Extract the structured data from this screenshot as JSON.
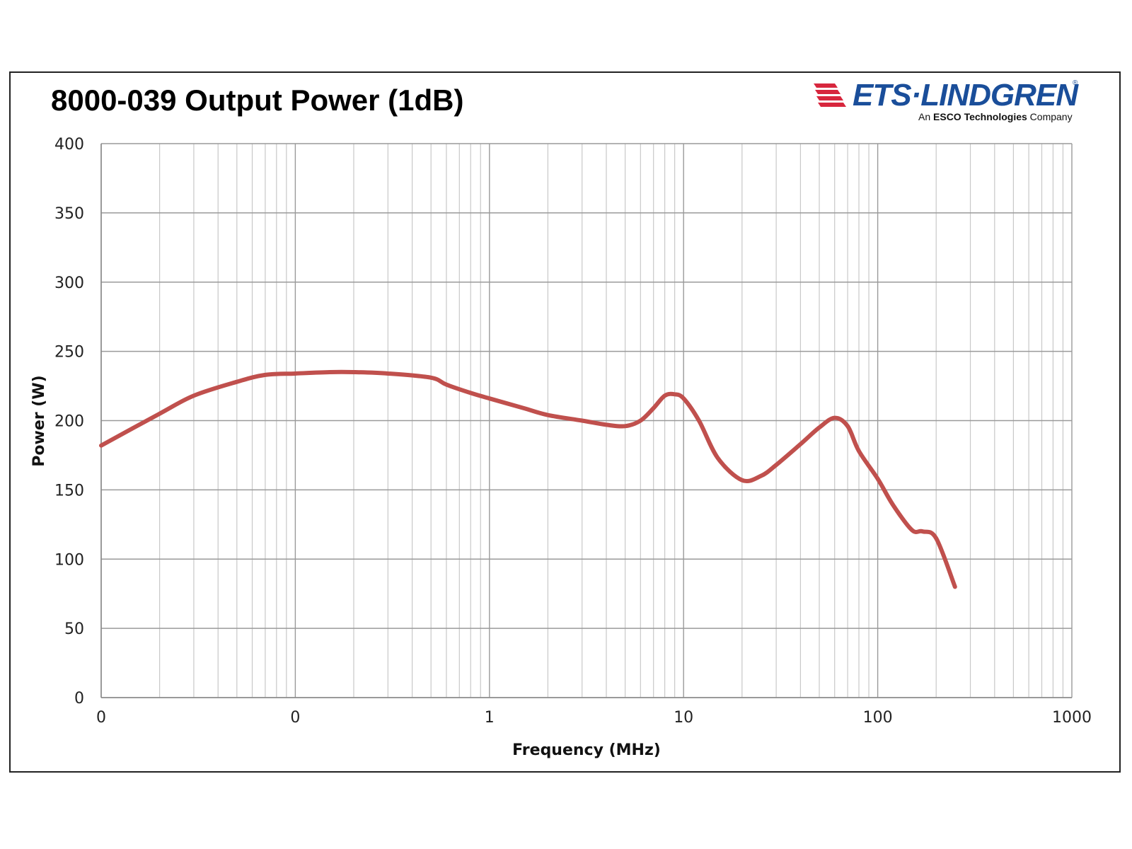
{
  "chart_data": {
    "type": "line",
    "title": "8000-039 Output Power (1dB)",
    "xlabel": "Frequency (MHz)",
    "ylabel": "Power (W)",
    "x_scale": "log",
    "xlim": [
      0.01,
      1000
    ],
    "ylim": [
      0,
      400
    ],
    "y_ticks": [
      0,
      50,
      100,
      150,
      200,
      250,
      300,
      350,
      400
    ],
    "x_tick_labels": [
      "0",
      "0",
      "1",
      "10",
      "100",
      "1000"
    ],
    "grid": true,
    "series": [
      {
        "color": "#c0504d",
        "x": [
          0.01,
          0.02,
          0.03,
          0.05,
          0.07,
          0.1,
          0.15,
          0.2,
          0.3,
          0.5,
          0.6,
          0.8,
          1,
          1.5,
          2,
          3,
          4,
          5,
          6,
          7,
          8,
          9,
          10,
          12,
          15,
          20,
          25,
          30,
          40,
          50,
          60,
          70,
          80,
          100,
          120,
          150,
          170,
          200,
          250
        ],
        "values": [
          182,
          205,
          218,
          228,
          233,
          234,
          235,
          235,
          234,
          231,
          226,
          220,
          216,
          209,
          204,
          200,
          197,
          196,
          200,
          209,
          218,
          219,
          216,
          200,
          173,
          157,
          160,
          168,
          183,
          195,
          202,
          196,
          178,
          158,
          139,
          121,
          120,
          115,
          80
        ]
      }
    ]
  },
  "logo": {
    "name": "ETS-LINDGREN",
    "wordmark": "ETS·LINDGREN",
    "registered": "®",
    "tagline_prefix": "An ",
    "tagline_bold": "ESCO Technologies",
    "tagline_suffix": " Company",
    "color": "#1a4e9a",
    "mark_color": "#d7263d"
  }
}
